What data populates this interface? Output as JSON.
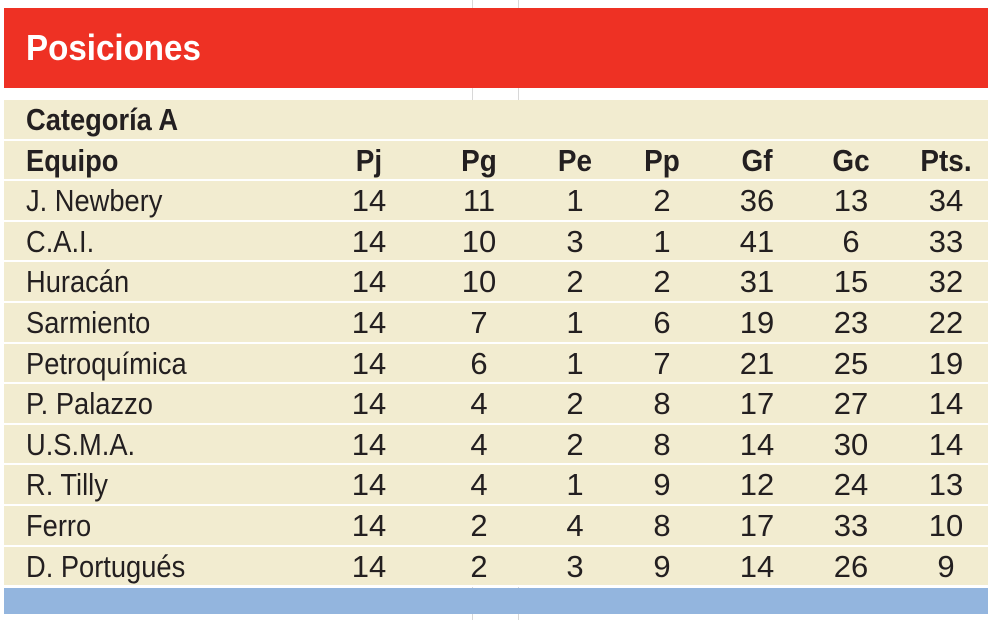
{
  "header": {
    "title": "Posiciones"
  },
  "category": "Categoría A",
  "columns": [
    "Equipo",
    "Pj",
    "Pg",
    "Pe",
    "Pp",
    "Gf",
    "Gc",
    "Pts."
  ],
  "rows": [
    [
      "J. Newbery",
      "14",
      "11",
      "1",
      "2",
      "36",
      "13",
      "34"
    ],
    [
      "C.A.I.",
      "14",
      "10",
      "3",
      "1",
      "41",
      "6",
      "33"
    ],
    [
      "Huracán",
      "14",
      "10",
      "2",
      "2",
      "31",
      "15",
      "32"
    ],
    [
      "Sarmiento",
      "14",
      "7",
      "1",
      "6",
      "19",
      "23",
      "22"
    ],
    [
      "Petroquímica",
      "14",
      "6",
      "1",
      "7",
      "21",
      "25",
      "19"
    ],
    [
      "P. Palazzo",
      "14",
      "4",
      "2",
      "8",
      "17",
      "27",
      "14"
    ],
    [
      "U.S.M.A.",
      "14",
      "4",
      "2",
      "8",
      "14",
      "30",
      "14"
    ],
    [
      "R. Tilly",
      "14",
      "4",
      "1",
      "9",
      "12",
      "24",
      "13"
    ],
    [
      "Ferro",
      "14",
      "2",
      "4",
      "8",
      "17",
      "33",
      "10"
    ],
    [
      "D. Portugués",
      "14",
      "2",
      "3",
      "9",
      "14",
      "26",
      "9"
    ]
  ],
  "colors": {
    "header_bg": "#ee3124",
    "row_bg": "#f2ecd0",
    "footer_bg": "#93b5de",
    "text": "#231f20"
  }
}
